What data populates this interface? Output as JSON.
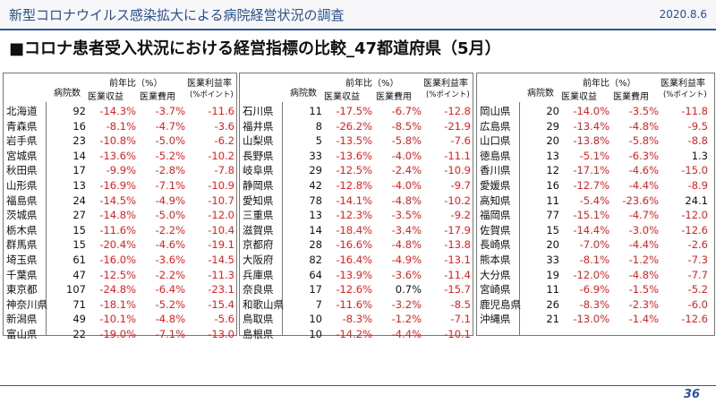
{
  "header": {
    "title": "新型コロナウイルス感染拡大による病院経営状況の調査",
    "date": "2020.8.6"
  },
  "heading": "■コロナ患者受入状況における経営指標の比較_47都道府県（5月）",
  "columns": {
    "hospitals": "病院数",
    "yoy": "前年比（%）",
    "revenue": "医業収益",
    "expense": "医業費用",
    "margin": "医業利益率",
    "margin_unit": "(%ポイント)"
  },
  "panels": [
    {
      "rows": [
        {
          "pref": "北海道",
          "n": "92",
          "rev": "-14.3%",
          "exp": "-3.7%",
          "mar": "-11.6"
        },
        {
          "pref": "青森県",
          "n": "16",
          "rev": "-8.1%",
          "exp": "-4.7%",
          "mar": "-3.6"
        },
        {
          "pref": "岩手県",
          "n": "23",
          "rev": "-10.8%",
          "exp": "-5.0%",
          "mar": "-6.2"
        },
        {
          "pref": "宮城県",
          "n": "14",
          "rev": "-13.6%",
          "exp": "-5.2%",
          "mar": "-10.2"
        },
        {
          "pref": "秋田県",
          "n": "17",
          "rev": "-9.9%",
          "exp": "-2.8%",
          "mar": "-7.8"
        },
        {
          "pref": "山形県",
          "n": "13",
          "rev": "-16.9%",
          "exp": "-7.1%",
          "mar": "-10.9"
        },
        {
          "pref": "福島県",
          "n": "24",
          "rev": "-14.5%",
          "exp": "-4.9%",
          "mar": "-10.7"
        },
        {
          "pref": "茨城県",
          "n": "27",
          "rev": "-14.8%",
          "exp": "-5.0%",
          "mar": "-12.0"
        },
        {
          "pref": "栃木県",
          "n": "15",
          "rev": "-11.6%",
          "exp": "-2.2%",
          "mar": "-10.4"
        },
        {
          "pref": "群馬県",
          "n": "15",
          "rev": "-20.4%",
          "exp": "-4.6%",
          "mar": "-19.1"
        },
        {
          "pref": "埼玉県",
          "n": "61",
          "rev": "-16.0%",
          "exp": "-3.6%",
          "mar": "-14.5"
        },
        {
          "pref": "千葉県",
          "n": "47",
          "rev": "-12.5%",
          "exp": "-2.2%",
          "mar": "-11.3"
        },
        {
          "pref": "東京都",
          "n": "107",
          "rev": "-24.8%",
          "exp": "-6.4%",
          "mar": "-23.1"
        },
        {
          "pref": "神奈川県",
          "n": "71",
          "rev": "-18.1%",
          "exp": "-5.2%",
          "mar": "-15.4"
        },
        {
          "pref": "新潟県",
          "n": "49",
          "rev": "-10.1%",
          "exp": "-4.8%",
          "mar": "-5.6"
        },
        {
          "pref": "富山県",
          "n": "22",
          "rev": "-19.0%",
          "exp": "-7.1%",
          "mar": "-13.0"
        }
      ]
    },
    {
      "rows": [
        {
          "pref": "石川県",
          "n": "11",
          "rev": "-17.5%",
          "exp": "-6.7%",
          "mar": "-12.8"
        },
        {
          "pref": "福井県",
          "n": "8",
          "rev": "-26.2%",
          "exp": "-8.5%",
          "mar": "-21.9"
        },
        {
          "pref": "山梨県",
          "n": "5",
          "rev": "-13.5%",
          "exp": "-5.8%",
          "mar": "-7.6"
        },
        {
          "pref": "長野県",
          "n": "33",
          "rev": "-13.6%",
          "exp": "-4.0%",
          "mar": "-11.1"
        },
        {
          "pref": "岐阜県",
          "n": "29",
          "rev": "-12.5%",
          "exp": "-2.4%",
          "mar": "-10.9"
        },
        {
          "pref": "静岡県",
          "n": "42",
          "rev": "-12.8%",
          "exp": "-4.0%",
          "mar": "-9.7"
        },
        {
          "pref": "愛知県",
          "n": "78",
          "rev": "-14.1%",
          "exp": "-4.8%",
          "mar": "-10.2"
        },
        {
          "pref": "三重県",
          "n": "13",
          "rev": "-12.3%",
          "exp": "-3.5%",
          "mar": "-9.2"
        },
        {
          "pref": "滋賀県",
          "n": "14",
          "rev": "-18.4%",
          "exp": "-3.4%",
          "mar": "-17.9"
        },
        {
          "pref": "京都府",
          "n": "28",
          "rev": "-16.6%",
          "exp": "-4.8%",
          "mar": "-13.8"
        },
        {
          "pref": "大阪府",
          "n": "82",
          "rev": "-16.4%",
          "exp": "-4.9%",
          "mar": "-13.1"
        },
        {
          "pref": "兵庫県",
          "n": "64",
          "rev": "-13.9%",
          "exp": "-3.6%",
          "mar": "-11.4"
        },
        {
          "pref": "奈良県",
          "n": "17",
          "rev": "-12.6%",
          "exp": "0.7%",
          "mar": "-15.7"
        },
        {
          "pref": "和歌山県",
          "n": "7",
          "rev": "-11.6%",
          "exp": "-3.2%",
          "mar": "-8.5"
        },
        {
          "pref": "鳥取県",
          "n": "10",
          "rev": "-8.3%",
          "exp": "-1.2%",
          "mar": "-7.1"
        },
        {
          "pref": "島根県",
          "n": "10",
          "rev": "-14.2%",
          "exp": "-4.4%",
          "mar": "-10.1"
        }
      ]
    },
    {
      "rows": [
        {
          "pref": "岡山県",
          "n": "20",
          "rev": "-14.0%",
          "exp": "-3.5%",
          "mar": "-11.8"
        },
        {
          "pref": "広島県",
          "n": "29",
          "rev": "-13.4%",
          "exp": "-4.8%",
          "mar": "-9.5"
        },
        {
          "pref": "山口県",
          "n": "20",
          "rev": "-13.8%",
          "exp": "-5.8%",
          "mar": "-8.8"
        },
        {
          "pref": "徳島県",
          "n": "13",
          "rev": "-5.1%",
          "exp": "-6.3%",
          "mar": "1.3"
        },
        {
          "pref": "香川県",
          "n": "12",
          "rev": "-17.1%",
          "exp": "-4.6%",
          "mar": "-15.0"
        },
        {
          "pref": "愛媛県",
          "n": "16",
          "rev": "-12.7%",
          "exp": "-4.4%",
          "mar": "-8.9"
        },
        {
          "pref": "高知県",
          "n": "11",
          "rev": "-5.4%",
          "exp": "-23.6%",
          "mar": "24.1"
        },
        {
          "pref": "福岡県",
          "n": "77",
          "rev": "-15.1%",
          "exp": "-4.7%",
          "mar": "-12.0"
        },
        {
          "pref": "佐賀県",
          "n": "15",
          "rev": "-14.4%",
          "exp": "-3.0%",
          "mar": "-12.6"
        },
        {
          "pref": "長崎県",
          "n": "20",
          "rev": "-7.0%",
          "exp": "-4.4%",
          "mar": "-2.6"
        },
        {
          "pref": "熊本県",
          "n": "33",
          "rev": "-8.1%",
          "exp": "-1.2%",
          "mar": "-7.3"
        },
        {
          "pref": "大分県",
          "n": "19",
          "rev": "-12.0%",
          "exp": "-4.8%",
          "mar": "-7.7"
        },
        {
          "pref": "宮崎県",
          "n": "11",
          "rev": "-6.9%",
          "exp": "-1.5%",
          "mar": "-5.2"
        },
        {
          "pref": "鹿児島県",
          "n": "26",
          "rev": "-8.3%",
          "exp": "-2.3%",
          "mar": "-6.0"
        },
        {
          "pref": "沖縄県",
          "n": "21",
          "rev": "-13.0%",
          "exp": "-1.4%",
          "mar": "-12.6"
        }
      ]
    }
  ],
  "page_number": "36",
  "colors": {
    "negative": "#e02020",
    "accent": "#2f5597"
  }
}
